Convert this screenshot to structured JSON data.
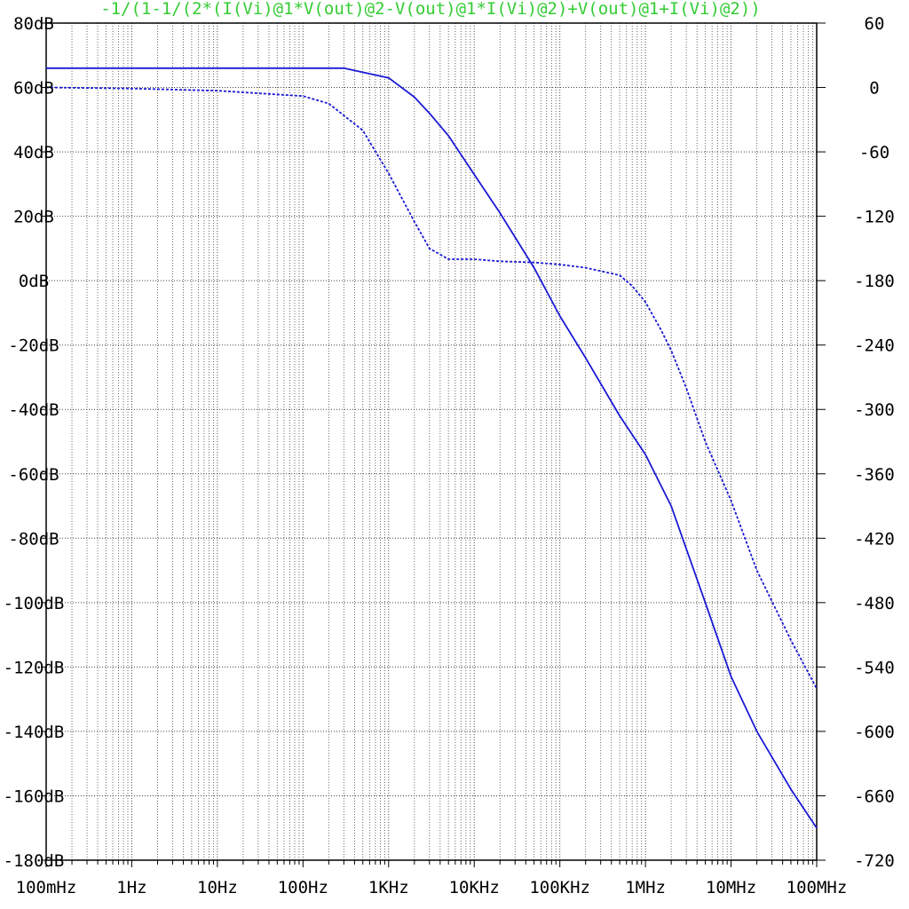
{
  "chart_data": {
    "type": "line",
    "title": "-1/(1-1/(2*(I(Vi)@1*V(out)@2-V(out)@1*I(Vi)@2)+V(out)@1+I(Vi)@2))",
    "x_scale": "log",
    "xlim": [
      0.1,
      100000000
    ],
    "ylim_left": [
      -180,
      80
    ],
    "ylim_right": [
      -720,
      60
    ],
    "grid": true,
    "x_tick_labels": [
      "100mHz",
      "1Hz",
      "10Hz",
      "100Hz",
      "1KHz",
      "10KHz",
      "100KHz",
      "1MHz",
      "10MHz",
      "100MHz"
    ],
    "y_left_tick_labels": [
      "80dB",
      "60dB",
      "40dB",
      "20dB",
      "0dB",
      "-20dB",
      "-40dB",
      "-60dB",
      "-80dB",
      "-100dB",
      "-120dB",
      "-140dB",
      "-160dB",
      "-180dB"
    ],
    "y_right_tick_labels": [
      "60",
      "0",
      "-60",
      "-120",
      "-180",
      "-240",
      "-300",
      "-360",
      "-420",
      "-480",
      "-540",
      "-600",
      "-660",
      "-720"
    ],
    "series": [
      {
        "axis": "left",
        "style": "solid",
        "x": [
          0.1,
          1,
          10,
          100,
          300,
          1000,
          2000,
          3000,
          5000,
          10000,
          20000,
          50000,
          100000,
          200000,
          500000,
          1000000,
          2000000,
          5000000,
          10000000,
          20000000,
          50000000,
          100000000
        ],
        "values": [
          66,
          66,
          66,
          66,
          66,
          63,
          57,
          52,
          45,
          33,
          21,
          4,
          -11,
          -24,
          -42,
          -54,
          -70,
          -100,
          -123,
          -140,
          -158,
          -170
        ]
      },
      {
        "axis": "right",
        "style": "dashed",
        "x": [
          0.1,
          1,
          10,
          100,
          200,
          500,
          1000,
          2000,
          3000,
          5000,
          10000,
          20000,
          50000,
          100000,
          200000,
          500000,
          700000,
          1000000,
          1500000,
          2000000,
          3000000,
          5000000,
          10000000,
          20000000,
          50000000,
          100000000
        ],
        "values": [
          0,
          -1,
          -3,
          -8,
          -15,
          -40,
          -80,
          -125,
          -150,
          -160,
          -160,
          -162,
          -163,
          -165,
          -168,
          -175,
          -185,
          -200,
          -225,
          -245,
          -280,
          -330,
          -385,
          -450,
          -515,
          -560
        ]
      }
    ]
  }
}
